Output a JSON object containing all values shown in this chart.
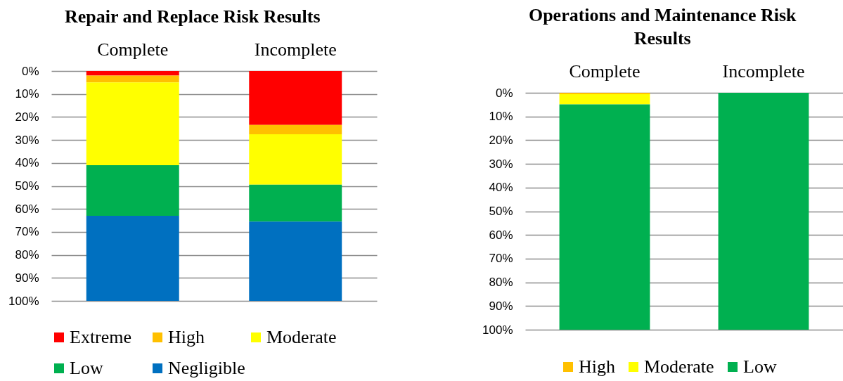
{
  "chart_data": [
    {
      "type": "bar",
      "stacked": true,
      "title": "Repair and Replace Risk Results",
      "categories": [
        "Complete",
        "Incomplete"
      ],
      "series": [
        {
          "name": "Extreme",
          "color": "#ff0000",
          "values": [
            2,
            23.5
          ]
        },
        {
          "name": "High",
          "color": "#ffc000",
          "values": [
            3,
            4
          ]
        },
        {
          "name": "Moderate",
          "color": "#ffff00",
          "values": [
            36,
            22
          ]
        },
        {
          "name": "Low",
          "color": "#00b050",
          "values": [
            22,
            16
          ]
        },
        {
          "name": "Negligible",
          "color": "#0070c0",
          "values": [
            37,
            34.5
          ]
        }
      ],
      "ylim": [
        100,
        0
      ],
      "yticks": [
        {
          "value": 0,
          "label": "0%"
        },
        {
          "value": 10,
          "label": "10%"
        },
        {
          "value": 20,
          "label": "20%"
        },
        {
          "value": 30,
          "label": "30%"
        },
        {
          "value": 40,
          "label": "40%"
        },
        {
          "value": 50,
          "label": "50%"
        },
        {
          "value": 60,
          "label": "60%"
        },
        {
          "value": 70,
          "label": "70%"
        },
        {
          "value": 80,
          "label": "80%"
        },
        {
          "value": 90,
          "label": "90%"
        },
        {
          "value": 100,
          "label": "100%"
        }
      ],
      "grid": "y",
      "legend": "bottom"
    },
    {
      "type": "bar",
      "stacked": true,
      "title": "Operations and Maintenance Risk Results",
      "categories": [
        "Complete",
        "Incomplete"
      ],
      "series": [
        {
          "name": "High",
          "color": "#ffc000",
          "values": [
            0.6,
            0
          ]
        },
        {
          "name": "Moderate",
          "color": "#ffff00",
          "values": [
            4.3,
            0
          ]
        },
        {
          "name": "Low",
          "color": "#00b050",
          "values": [
            95.1,
            100
          ]
        }
      ],
      "ylim": [
        100,
        0
      ],
      "yticks": [
        {
          "value": 0,
          "label": "0%"
        },
        {
          "value": 10,
          "label": "10%"
        },
        {
          "value": 20,
          "label": "20%"
        },
        {
          "value": 30,
          "label": "30%"
        },
        {
          "value": 40,
          "label": "40%"
        },
        {
          "value": 50,
          "label": "50%"
        },
        {
          "value": 60,
          "label": "60%"
        },
        {
          "value": 70,
          "label": "70%"
        },
        {
          "value": 80,
          "label": "80%"
        },
        {
          "value": 90,
          "label": "90%"
        },
        {
          "value": 100,
          "label": "100%"
        }
      ],
      "grid": "y",
      "legend": "bottom"
    }
  ]
}
